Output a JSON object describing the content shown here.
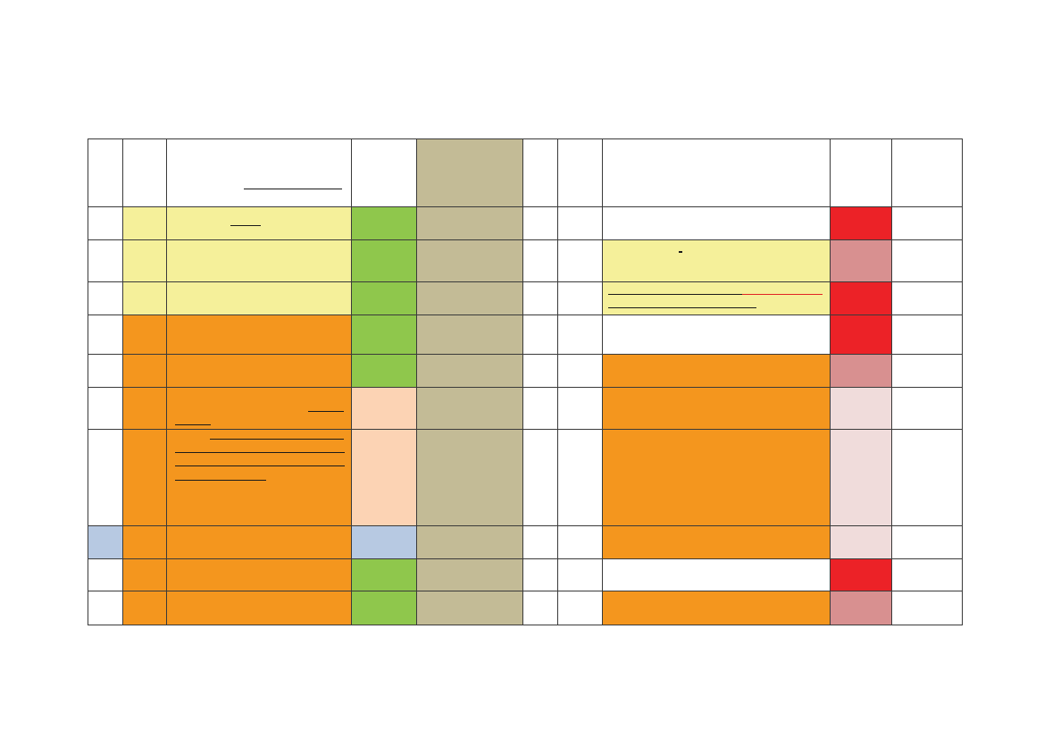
{
  "palette": {
    "white": "#ffffff",
    "pale_yellow": "#f5f09a",
    "orange": "#f4961e",
    "green": "#8fc74c",
    "tan": "#c3bb96",
    "peach": "#fcd3b4",
    "light_blue": "#b7c9e2",
    "red": "#ec2227",
    "dusty_pink": "#d89090",
    "very_light_pink": "#f0dcdb"
  },
  "table": {
    "columns": 10,
    "rows": [
      {
        "fills": [
          "white",
          "white",
          "white",
          "white",
          "tan",
          "white",
          "white",
          "white",
          "white",
          "white"
        ]
      },
      {
        "fills": [
          "white",
          "pale_yellow",
          "pale_yellow",
          "green",
          "tan",
          "white",
          "white",
          "white",
          "red",
          "white"
        ]
      },
      {
        "fills": [
          "white",
          "pale_yellow",
          "pale_yellow",
          "green",
          "tan",
          "white",
          "white",
          "pale_yellow",
          "dusty_pink",
          "white"
        ]
      },
      {
        "fills": [
          "white",
          "pale_yellow",
          "pale_yellow",
          "green",
          "tan",
          "white",
          "white",
          "pale_yellow",
          "red",
          "white"
        ]
      },
      {
        "fills": [
          "white",
          "orange",
          "orange",
          "green",
          "tan",
          "white",
          "white",
          "white",
          "red",
          "white"
        ]
      },
      {
        "fills": [
          "white",
          "orange",
          "orange",
          "green",
          "tan",
          "white",
          "white",
          "orange",
          "dusty_pink",
          "white"
        ]
      },
      {
        "fills": [
          "white",
          "orange",
          "orange",
          "peach",
          "tan",
          "white",
          "white",
          "orange",
          "very_light_pink",
          "white"
        ]
      },
      {
        "fills": [
          "white",
          "orange",
          "orange",
          "peach",
          "tan",
          "white",
          "white",
          "orange",
          "very_light_pink",
          "white"
        ]
      },
      {
        "fills": [
          "light_blue",
          "orange",
          "orange",
          "light_blue",
          "tan",
          "white",
          "white",
          "orange",
          "very_light_pink",
          "white"
        ]
      },
      {
        "fills": [
          "white",
          "orange",
          "orange",
          "green",
          "tan",
          "white",
          "white",
          "white",
          "red",
          "white"
        ]
      },
      {
        "fills": [
          "white",
          "orange",
          "orange",
          "green",
          "tan",
          "white",
          "white",
          "orange",
          "dusty_pink",
          "white"
        ]
      }
    ]
  }
}
